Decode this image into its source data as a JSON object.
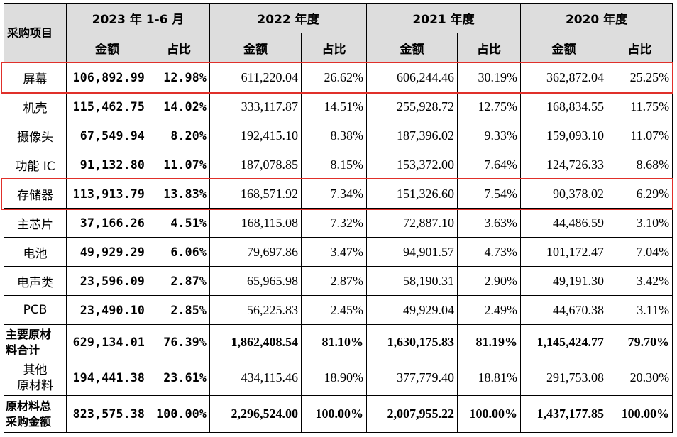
{
  "table": {
    "row_header_title": "采购项目",
    "periods": [
      "2023 年 1-6 月",
      "2022 年度",
      "2021 年度",
      "2020 年度"
    ],
    "sub_headers": [
      "金额",
      "占比"
    ],
    "rows": [
      {
        "name": "屏幕",
        "values": [
          "106,892.99",
          "12.98%",
          "611,220.04",
          "26.62%",
          "606,244.46",
          "30.19%",
          "362,872.04",
          "25.25%"
        ],
        "highlighted": true
      },
      {
        "name": "机壳",
        "values": [
          "115,462.75",
          "14.02%",
          "333,117.87",
          "14.51%",
          "255,928.72",
          "12.75%",
          "168,834.55",
          "11.75%"
        ]
      },
      {
        "name": "摄像头",
        "values": [
          "67,549.94",
          "8.20%",
          "192,415.10",
          "8.38%",
          "187,396.02",
          "9.33%",
          "159,093.10",
          "11.07%"
        ]
      },
      {
        "name": "功能 IC",
        "values": [
          "91,132.80",
          "11.07%",
          "187,078.85",
          "8.15%",
          "153,372.00",
          "7.64%",
          "124,726.33",
          "8.68%"
        ]
      },
      {
        "name": "存储器",
        "values": [
          "113,913.79",
          "13.83%",
          "168,571.92",
          "7.34%",
          "151,326.60",
          "7.54%",
          "90,378.02",
          "6.29%"
        ],
        "highlighted": true
      },
      {
        "name": "主芯片",
        "values": [
          "37,166.26",
          "4.51%",
          "168,115.08",
          "7.32%",
          "72,887.10",
          "3.63%",
          "44,486.59",
          "3.10%"
        ]
      },
      {
        "name": "电池",
        "values": [
          "49,929.29",
          "6.06%",
          "79,697.86",
          "3.47%",
          "94,901.57",
          "4.73%",
          "101,172.47",
          "7.04%"
        ]
      },
      {
        "name": "电声类",
        "values": [
          "23,596.09",
          "2.87%",
          "65,965.98",
          "2.87%",
          "58,190.31",
          "2.90%",
          "49,191.30",
          "3.42%"
        ]
      },
      {
        "name": "PCB",
        "values": [
          "23,490.10",
          "2.85%",
          "56,225.83",
          "2.45%",
          "49,929.04",
          "2.49%",
          "44,670.38",
          "3.11%"
        ]
      },
      {
        "name": "主要原材料合计",
        "values": [
          "629,134.01",
          "76.39%",
          "1,862,408.54",
          "81.10%",
          "1,630,175.83",
          "81.19%",
          "1,145,424.77",
          "79.70%"
        ]
      },
      {
        "name": "其他原材料",
        "values": [
          "194,441.38",
          "23.61%",
          "434,115.46",
          "18.90%",
          "377,779.40",
          "18.81%",
          "291,753.08",
          "20.30%"
        ]
      },
      {
        "name": "原材料总采购金额",
        "values": [
          "823,575.38",
          "100.00%",
          "2,296,524.00",
          "100.00%",
          "2,007,955.22",
          "100.00%",
          "1,437,177.85",
          "100.00%"
        ]
      }
    ]
  },
  "colors": {
    "header_bg": "#dddddd",
    "highlight_border": "#e0302a"
  }
}
